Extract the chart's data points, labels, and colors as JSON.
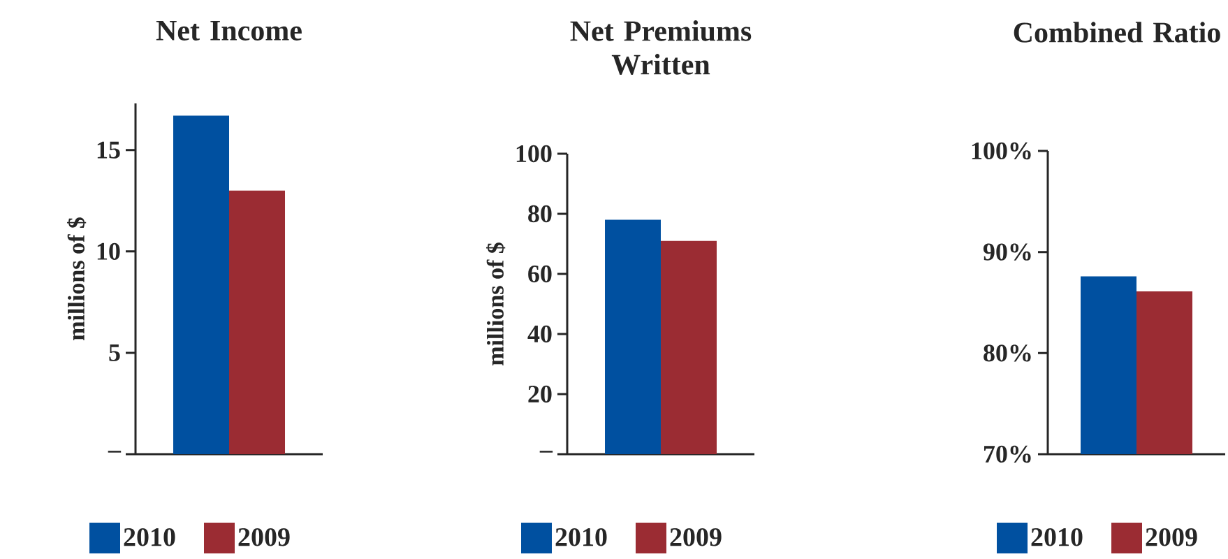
{
  "chart_data": [
    {
      "type": "bar",
      "title": "Net Income",
      "ylabel": "millions of $",
      "categories": [
        null
      ],
      "series": [
        {
          "name": "2010",
          "color": "#0050a0",
          "values": [
            16.7
          ]
        },
        {
          "name": "2009",
          "color": "#9b2c33",
          "values": [
            13.0
          ]
        }
      ],
      "ylim": [
        0,
        17.3
      ],
      "yticks": [
        {
          "value": 0,
          "label": "–"
        },
        5,
        10,
        15
      ],
      "legend": "bottom"
    },
    {
      "type": "bar",
      "title": "Net Premiums Written",
      "ylabel": "millions of $",
      "categories": [
        null
      ],
      "series": [
        {
          "name": "2010",
          "color": "#0050a0",
          "values": [
            78
          ]
        },
        {
          "name": "2009",
          "color": "#9b2c33",
          "values": [
            71
          ]
        }
      ],
      "ylim": [
        0,
        100
      ],
      "yticks": [
        {
          "value": 0,
          "label": "–"
        },
        20,
        40,
        60,
        80,
        100
      ],
      "legend": "bottom"
    },
    {
      "type": "bar",
      "title": "Combined Ratio",
      "categories": [
        null
      ],
      "series": [
        {
          "name": "2010",
          "color": "#0050a0",
          "values": [
            87.6
          ]
        },
        {
          "name": "2009",
          "color": "#9b2c33",
          "values": [
            86.1
          ]
        }
      ],
      "ylim": [
        70,
        100
      ],
      "yticks": [
        {
          "value": 70,
          "label": "70%"
        },
        {
          "value": 80,
          "label": "80%"
        },
        {
          "value": 90,
          "label": "90%"
        },
        {
          "value": 100,
          "label": "100%"
        }
      ],
      "legend": "bottom"
    }
  ]
}
